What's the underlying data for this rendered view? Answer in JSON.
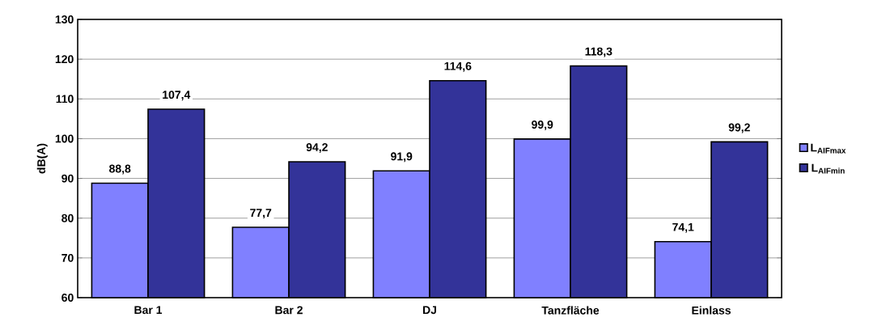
{
  "chart_data": {
    "type": "bar",
    "ylabel": "dB(A)",
    "categories": [
      "Bar 1",
      "Bar 2",
      "DJ",
      "Tanzfläche",
      "Einlass"
    ],
    "series": [
      {
        "name": "L$_{AIFmax}$",
        "color": "#8080ff",
        "values": [
          88.8,
          77.7,
          91.9,
          99.9,
          74.1
        ],
        "value_labels": [
          "88,8",
          "77,7",
          "91,9",
          "99,9",
          "74,1"
        ]
      },
      {
        "name": "L$_{AIFmin}$",
        "color": "#333399",
        "values": [
          107.4,
          94.2,
          114.6,
          118.3,
          99.2
        ],
        "value_labels": [
          "107,4",
          "94,2",
          "114,6",
          "118,3",
          "99,2"
        ]
      }
    ],
    "ylim": [
      60,
      130
    ],
    "yticks": [
      60,
      70,
      80,
      90,
      100,
      110,
      120,
      130
    ],
    "grid": "y",
    "legend": "right"
  }
}
